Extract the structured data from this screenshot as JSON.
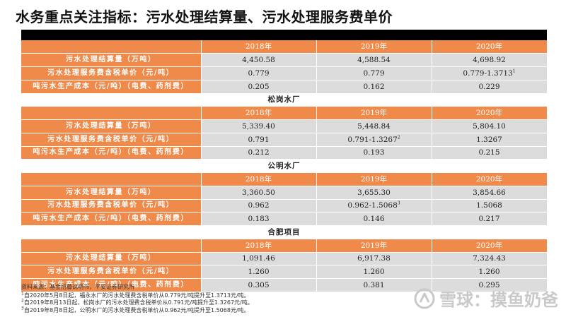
{
  "title": "水务重点关注指标：污水处理结算量、污水处理服务费单价",
  "sections": [
    {
      "name": "",
      "years": [
        "2018年",
        "2019年",
        "2020年"
      ],
      "rows": [
        {
          "label": "污水处理结算量（万吨）",
          "values": [
            "4,450.58",
            "4,588.54",
            "4,698.92"
          ],
          "notes": [
            "",
            "",
            ""
          ]
        },
        {
          "label": "污水处理服务费含税单价（元/吨）",
          "values": [
            "0.779",
            "0.779",
            "0.779-1.3713"
          ],
          "notes": [
            "",
            "",
            "1"
          ]
        },
        {
          "label": "吨污水生产成本（元/吨）（电费、药剂费）",
          "values": [
            "0.205",
            "0.162",
            "0.229"
          ],
          "notes": [
            "",
            "",
            ""
          ]
        }
      ]
    },
    {
      "name": "松岗水厂",
      "years": [
        "2018年",
        "2019年",
        "2020年"
      ],
      "rows": [
        {
          "label": "污水处理结算量（万吨）",
          "values": [
            "5,339.40",
            "5,448.84",
            "5,804.10"
          ],
          "notes": [
            "",
            "",
            ""
          ]
        },
        {
          "label": "污水处理服务费含税单价（元/吨）",
          "values": [
            "0.791",
            "0.791-1.3267",
            "1.3267"
          ],
          "notes": [
            "",
            "2",
            ""
          ]
        },
        {
          "label": "吨污水生产成本（元/吨）（电费、药剂费）",
          "values": [
            "0.212",
            "0.193",
            "0.215"
          ],
          "notes": [
            "",
            "",
            ""
          ]
        }
      ]
    },
    {
      "name": "公明水厂",
      "years": [
        "2018年",
        "2019年",
        "2020年"
      ],
      "rows": [
        {
          "label": "污水处理结算量（万吨）",
          "values": [
            "3,360.50",
            "3,655.30",
            "3,854.66"
          ],
          "notes": [
            "",
            "",
            ""
          ]
        },
        {
          "label": "污水处理服务费含税单价（元/吨）",
          "values": [
            "0.962",
            "0.962-1.5068",
            "1.5068"
          ],
          "notes": [
            "",
            "3",
            ""
          ]
        },
        {
          "label": "吨污水生产成本（元/吨）（电费、药剂费）",
          "values": [
            "0.183",
            "0.146",
            "0.217"
          ],
          "notes": [
            "",
            "",
            ""
          ]
        }
      ]
    },
    {
      "name": "合肥项目",
      "years": [
        "2018年",
        "2019年",
        "2020年"
      ],
      "rows": [
        {
          "label": "污水处理结算量（万吨）",
          "values": [
            "1,091.46",
            "6,917.38",
            "7,324.43"
          ],
          "notes": [
            "",
            "",
            ""
          ]
        },
        {
          "label": "污水处理服务费含税单价（元/吨）",
          "values": [
            "1.260",
            "1.260",
            "1.260"
          ],
          "notes": [
            "",
            "",
            ""
          ]
        },
        {
          "label": "吨污水生产成本（元/吨）（电费、药剂费）",
          "values": [
            "0.305",
            "0.381",
            "0.295"
          ],
          "notes": [
            "",
            "",
            ""
          ]
        }
      ]
    }
  ],
  "footer": {
    "source": "资料来源：基金招募说明书，平安证券研究所",
    "notes": [
      {
        "num": "1",
        "text": "自2020年5月8日起，福永水厂的污水处理费含税单价从0.779元/吨提升至1.3713元/吨。"
      },
      {
        "num": "2",
        "text": "自2019年8月13日起，松岗水厂的污水处理费含税单价从0.791元/吨提升至1.3267元/吨。"
      },
      {
        "num": "3",
        "text": "自2019年8月8日起，公明水厂的污水处理费含税单价从0.962元/吨提升至1.5068元/吨。"
      }
    ]
  },
  "watermark": {
    "text": "雪球：摸鱼奶爸",
    "icon": "snowball-logo-icon",
    "color": "#c9c9c9"
  },
  "colors": {
    "header_orange": "#f08a4b",
    "value_gray": "#dcdcdc",
    "top_bar": "#000000"
  }
}
